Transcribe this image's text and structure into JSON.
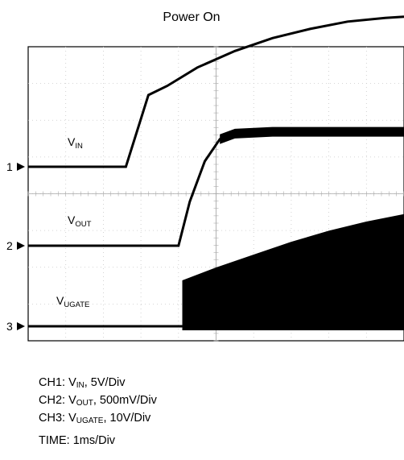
{
  "title": "Power On",
  "chart_data": {
    "type": "line",
    "subtype": "oscilloscope capture",
    "grid": true,
    "divisions": {
      "x": 10,
      "y": 8
    },
    "x_unit": "ms",
    "x_range": [
      0,
      10
    ],
    "series": [
      {
        "channel": "1",
        "marker": "1",
        "name": "IN",
        "label_main": "V",
        "label_sub": "IN",
        "scale": "5V/Div",
        "color": "#000000",
        "points": [
          [
            0,
            0
          ],
          [
            2.6,
            0
          ],
          [
            3.2,
            1.95
          ],
          [
            3.7,
            2.2
          ],
          [
            4.5,
            2.7
          ],
          [
            5.5,
            3.15
          ],
          [
            6.5,
            3.5
          ],
          [
            7.5,
            3.75
          ],
          [
            8.5,
            3.95
          ],
          [
            9.5,
            4.05
          ],
          [
            10,
            4.08
          ]
        ]
      },
      {
        "channel": "2",
        "marker": "2",
        "name": "OUT",
        "label_main": "V",
        "label_sub": "OUT",
        "scale": "500mV/Div",
        "color": "#000000",
        "points": [
          [
            0,
            0
          ],
          [
            4,
            0
          ],
          [
            4.3,
            1.2
          ],
          [
            4.7,
            2.3
          ],
          [
            5.1,
            2.9
          ],
          [
            5.5,
            3.05
          ],
          [
            6.5,
            3.1
          ],
          [
            8,
            3.1
          ],
          [
            10,
            3.1
          ]
        ]
      },
      {
        "channel": "3",
        "marker": "3",
        "name": "UGATE",
        "label_main": "V",
        "label_sub": "UGATE",
        "scale": "10V/Div",
        "color": "#000000",
        "points": [
          [
            0,
            0
          ],
          [
            4.1,
            0
          ],
          [
            4.1,
            1.25
          ],
          [
            5,
            1.6
          ],
          [
            6,
            1.95
          ],
          [
            7,
            2.3
          ],
          [
            8,
            2.6
          ],
          [
            9,
            2.85
          ],
          [
            10,
            3.05
          ]
        ]
      }
    ],
    "time_scale": "1ms/Div"
  },
  "legend": {
    "ch1": {
      "prefix": "CH1: V",
      "sub": "IN",
      "suffix": ", 5V/Div"
    },
    "ch2": {
      "prefix": "CH2: V",
      "sub": "OUT",
      "suffix": ", 500mV/Div"
    },
    "ch3": {
      "prefix": "CH3: V",
      "sub": "UGATE",
      "suffix": ", 10V/Div"
    },
    "time": "TIME: 1ms/Div"
  }
}
